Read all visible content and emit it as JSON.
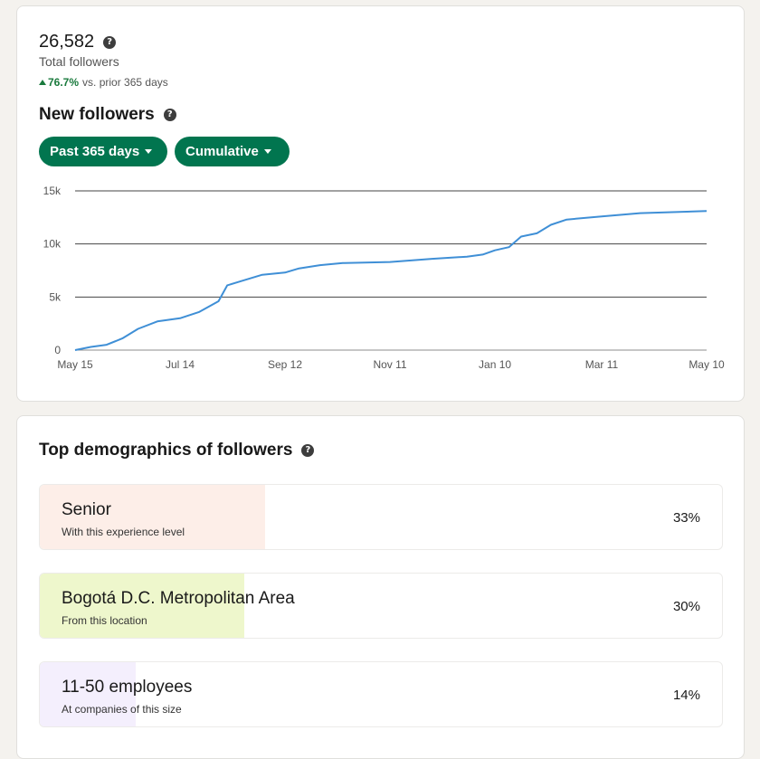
{
  "summary": {
    "total_value": "26,582",
    "total_label": "Total followers",
    "delta_value": "76.7%",
    "delta_label": "vs. prior 365 days"
  },
  "new_followers": {
    "title": "New followers",
    "range_filter": "Past 365 days",
    "mode_filter": "Cumulative"
  },
  "chart_data": {
    "type": "line",
    "x": [
      "May 15",
      "May 24",
      "Jun 02",
      "Jun 11",
      "Jun 20",
      "Jul 01",
      "Jul 14",
      "Jul 25",
      "Aug 05",
      "Aug 10",
      "Aug 18",
      "Aug 30",
      "Sep 12",
      "Sep 20",
      "Oct 02",
      "Oct 15",
      "Nov 11",
      "Dec 05",
      "Dec 25",
      "Jan 03",
      "Jan 10",
      "Jan 18",
      "Jan 25",
      "Feb 03",
      "Feb 11",
      "Feb 20",
      "Mar 11",
      "Apr 02",
      "May 10"
    ],
    "values": [
      0,
      300,
      500,
      1100,
      2000,
      2700,
      3000,
      3600,
      4600,
      6100,
      6500,
      7100,
      7300,
      7700,
      8000,
      8200,
      8300,
      8600,
      8800,
      9000,
      9400,
      9700,
      10700,
      11000,
      11800,
      12300,
      12600,
      12900,
      13100
    ],
    "xticks": [
      "May 15",
      "Jul 14",
      "Sep 12",
      "Nov 11",
      "Jan 10",
      "Mar 11",
      "May 10"
    ],
    "yticks": [
      "0",
      "5k",
      "10k",
      "15k"
    ],
    "ylim": [
      0,
      15000
    ],
    "grid": true,
    "line_color": "#3f8fd6"
  },
  "demographics": {
    "title": "Top demographics of followers",
    "items": [
      {
        "label": "Senior",
        "sub": "With this experience level",
        "pct": "33%",
        "share": 0.33,
        "color": "#fdeee8"
      },
      {
        "label": "Bogotá D.C. Metropolitan Area",
        "sub": "From this location",
        "pct": "30%",
        "share": 0.3,
        "color": "#eef7cc"
      },
      {
        "label": "11-50 employees",
        "sub": "At companies of this size",
        "pct": "14%",
        "share": 0.14,
        "color": "#f4effd"
      }
    ]
  }
}
